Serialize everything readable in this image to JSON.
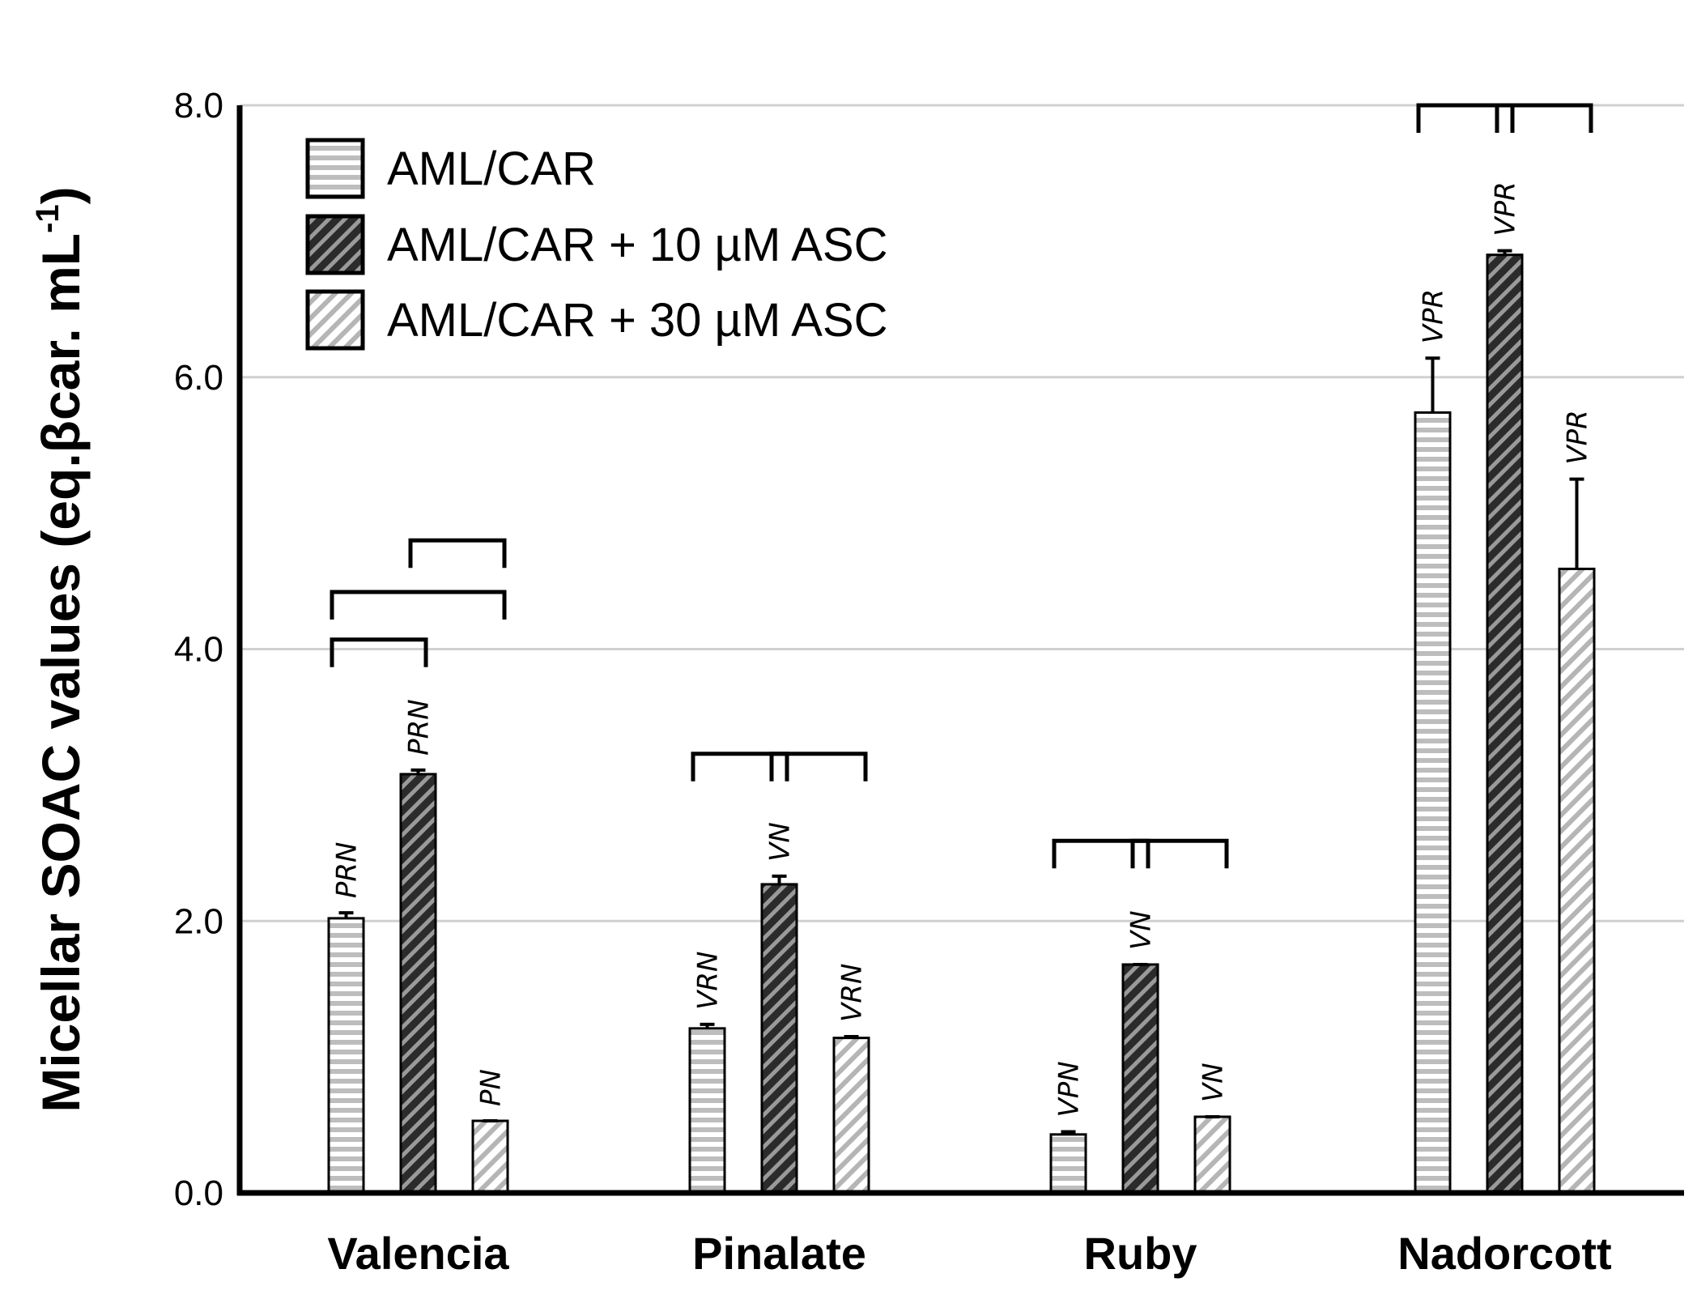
{
  "chart_data": {
    "type": "bar",
    "ylabel": "Micellar SOAC values (eq.βcar. mL",
    "ylabel_sup": "-1",
    "ylabel_close": ")",
    "ylim": [
      0,
      8
    ],
    "yticks": [
      "0.0",
      "2.0",
      "4.0",
      "6.0",
      "8.0"
    ],
    "grid": true,
    "legend_position": "top-left",
    "categories": [
      "Valencia",
      "Pinalate",
      "Ruby",
      "Nadorcott"
    ],
    "series": [
      {
        "name": "AML/CAR",
        "pattern": "horizontal-stripes",
        "values": [
          2.02,
          1.21,
          0.43,
          5.74
        ],
        "errors": [
          0.04,
          0.03,
          0.02,
          0.4
        ],
        "labels": [
          "PRN",
          "VRN",
          "VPN",
          "VPR"
        ]
      },
      {
        "name": "AML/CAR + 10 µM ASC",
        "pattern": "dark-diagonal",
        "values": [
          3.08,
          2.27,
          1.68,
          6.9
        ],
        "errors": [
          0.03,
          0.06,
          0.0,
          0.03
        ],
        "labels": [
          "PRN",
          "VN",
          "VN",
          "VPR"
        ]
      },
      {
        "name": "AML/CAR + 30 µM ASC",
        "pattern": "light-diagonal",
        "values": [
          0.53,
          1.14,
          0.56,
          4.59
        ],
        "errors": [
          0.0,
          0.01,
          0.0,
          0.66
        ],
        "labels": [
          "PN",
          "VRN",
          "VN",
          "VPR"
        ]
      }
    ],
    "comparison_brackets": [
      {
        "category": 0,
        "from": 0,
        "to": 1,
        "level": 4.07
      },
      {
        "category": 0,
        "from": 0,
        "to": 2,
        "level": 4.42
      },
      {
        "category": 0,
        "from": 1,
        "to": 2,
        "level": 4.8
      },
      {
        "category": 1,
        "from": 0,
        "to": 1,
        "level": 3.23
      },
      {
        "category": 1,
        "from": 1,
        "to": 2,
        "level": 3.23
      },
      {
        "category": 2,
        "from": 0,
        "to": 1,
        "level": 2.59
      },
      {
        "category": 2,
        "from": 1,
        "to": 2,
        "level": 2.59
      },
      {
        "category": 3,
        "from": 0,
        "to": 1,
        "level": 8.0
      },
      {
        "category": 3,
        "from": 1,
        "to": 2,
        "level": 8.0
      }
    ]
  }
}
